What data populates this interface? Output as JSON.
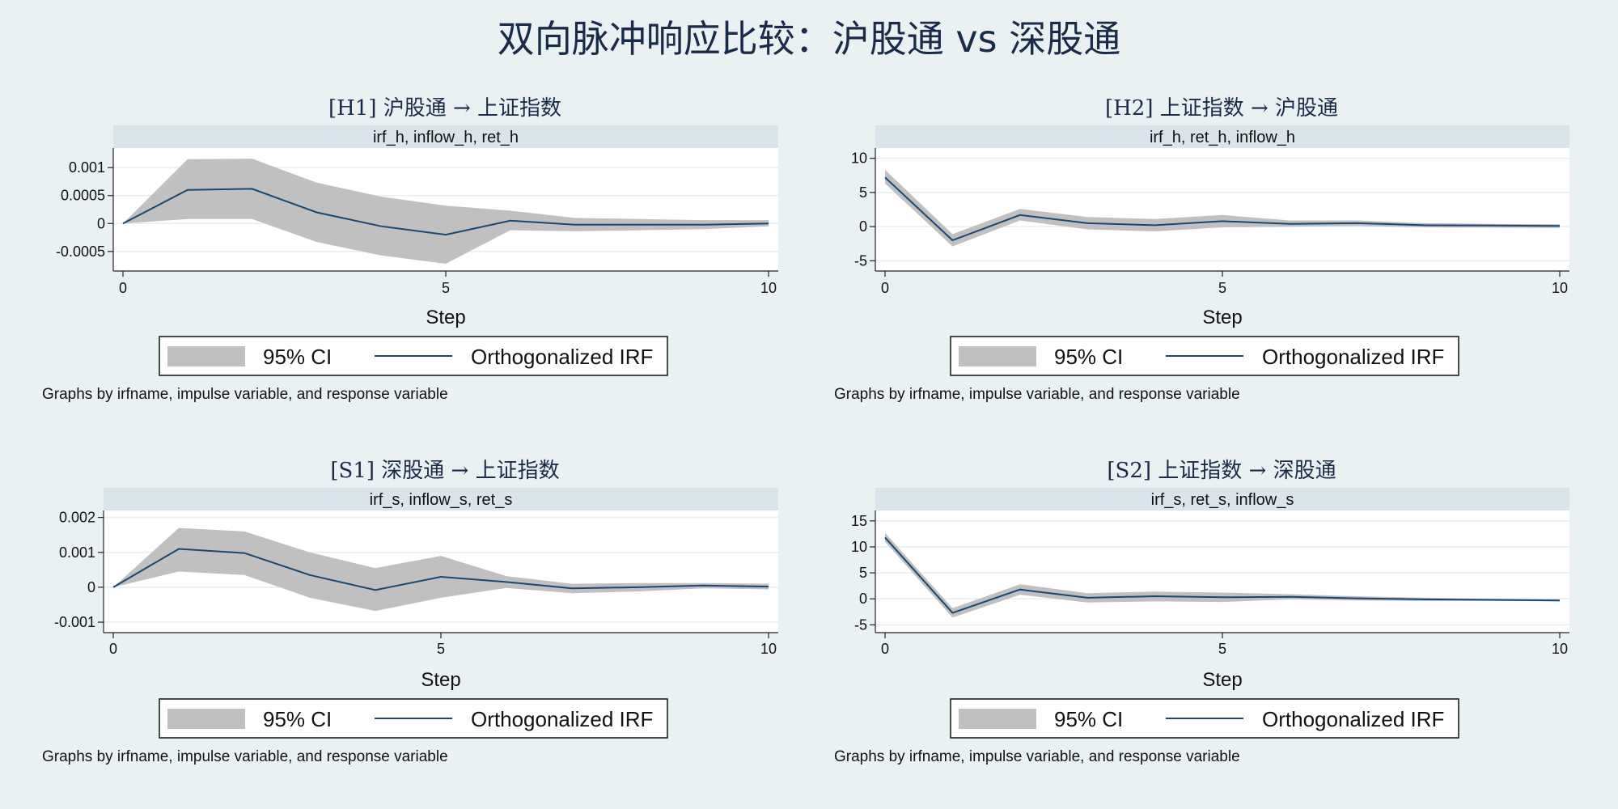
{
  "page": {
    "title": "双向脉冲响应比较：沪股通 vs 深股通"
  },
  "colors": {
    "background": "#eaf1f3",
    "plot_background": "#ffffff",
    "strip": "#d9e5ea",
    "ci_band": "#c0c0c0",
    "irf_line": "#1a476f",
    "grid": "#e6eef1"
  },
  "chart_data": [
    {
      "type": "line",
      "title": "[H1] 沪股通 → 上证指数",
      "strip_label": "irf_h, inflow_h, ret_h",
      "xlabel": "Step",
      "ylabel": "",
      "xlim": [
        0,
        10
      ],
      "ylim": [
        -0.00085,
        0.00135
      ],
      "xticks": [
        0,
        5,
        10
      ],
      "xtick_labels": [
        "0",
        "5",
        "10"
      ],
      "yticks": [
        -0.0005,
        0,
        0.0005,
        0.001
      ],
      "ytick_labels": [
        "-0.0005",
        "0",
        "0.0005",
        "0.001"
      ],
      "x": [
        0,
        1,
        2,
        3,
        4,
        5,
        6,
        7,
        8,
        9,
        10
      ],
      "series": [
        {
          "name": "Orthogonalized IRF",
          "values": [
            0,
            0.0006,
            0.00062,
            0.0002,
            -5e-05,
            -0.0002,
            5e-05,
            -2e-05,
            -2e-05,
            -2e-05,
            0.0
          ]
        },
        {
          "name": "95% CI",
          "lower": [
            0,
            8e-05,
            8e-05,
            -0.00033,
            -0.00057,
            -0.00072,
            -0.00012,
            -0.00014,
            -0.00012,
            -0.0001,
            -5e-05
          ],
          "upper": [
            0,
            0.00115,
            0.00116,
            0.00073,
            0.00048,
            0.00032,
            0.00023,
            0.0001,
            8e-05,
            6e-05,
            6e-05
          ]
        }
      ],
      "legend": [
        "95% CI",
        "Orthogonalized IRF"
      ],
      "note": "Graphs by irfname, impulse variable, and response variable",
      "grid": true,
      "legend_position": "bottom"
    },
    {
      "type": "line",
      "title": "[H2] 上证指数 → 沪股通",
      "strip_label": "irf_h, ret_h, inflow_h",
      "xlabel": "Step",
      "ylabel": "",
      "xlim": [
        0,
        10
      ],
      "ylim": [
        -6.5,
        11.5
      ],
      "xticks": [
        0,
        5,
        10
      ],
      "xtick_labels": [
        "0",
        "5",
        "10"
      ],
      "yticks": [
        -5,
        0,
        5,
        10
      ],
      "ytick_labels": [
        "-5",
        "0",
        "5",
        "10"
      ],
      "x": [
        0,
        1,
        2,
        3,
        4,
        5,
        6,
        7,
        8,
        9,
        10
      ],
      "series": [
        {
          "name": "Orthogonalized IRF",
          "values": [
            7.2,
            -2.0,
            1.7,
            0.5,
            0.2,
            0.8,
            0.4,
            0.5,
            0.2,
            0.15,
            0.1
          ]
        },
        {
          "name": "95% CI",
          "lower": [
            6.3,
            -2.9,
            0.9,
            -0.4,
            -0.7,
            -0.1,
            0.0,
            0.1,
            -0.1,
            -0.15,
            -0.2
          ],
          "upper": [
            8.3,
            -1.1,
            2.6,
            1.4,
            1.1,
            1.7,
            0.9,
            0.9,
            0.5,
            0.4,
            0.35
          ]
        }
      ],
      "legend": [
        "95% CI",
        "Orthogonalized IRF"
      ],
      "note": "Graphs by irfname, impulse variable, and response variable",
      "grid": true,
      "legend_position": "bottom"
    },
    {
      "type": "line",
      "title": "[S1] 深股通 → 上证指数",
      "strip_label": "irf_s, inflow_s, ret_s",
      "xlabel": "Step",
      "ylabel": "",
      "xlim": [
        0,
        10
      ],
      "ylim": [
        -0.0013,
        0.0022
      ],
      "xticks": [
        0,
        5,
        10
      ],
      "xtick_labels": [
        "0",
        "5",
        "10"
      ],
      "yticks": [
        -0.001,
        0,
        0.001,
        0.002
      ],
      "ytick_labels": [
        "-0.001",
        "0",
        "0.001",
        "0.002"
      ],
      "x": [
        0,
        1,
        2,
        3,
        4,
        5,
        6,
        7,
        8,
        9,
        10
      ],
      "series": [
        {
          "name": "Orthogonalized IRF",
          "values": [
            0,
            0.0011,
            0.00098,
            0.00035,
            -8e-05,
            0.0003,
            0.00015,
            -3e-05,
            0.0,
            5e-05,
            2e-05
          ]
        },
        {
          "name": "95% CI",
          "lower": [
            0,
            0.00045,
            0.00035,
            -0.0003,
            -0.00068,
            -0.0003,
            -2e-05,
            -0.00017,
            -0.00012,
            -3e-05,
            -6e-05
          ],
          "upper": [
            0,
            0.0017,
            0.0016,
            0.001,
            0.00055,
            0.0009,
            0.00032,
            0.0001,
            0.00012,
            0.00012,
            0.0001
          ]
        }
      ],
      "legend": [
        "95% CI",
        "Orthogonalized IRF"
      ],
      "note": "Graphs by irfname, impulse variable, and response variable",
      "grid": true,
      "legend_position": "bottom"
    },
    {
      "type": "line",
      "title": "[S2] 上证指数 → 深股通",
      "strip_label": "irf_s, ret_s, inflow_s",
      "xlabel": "Step",
      "ylabel": "",
      "xlim": [
        0,
        10
      ],
      "ylim": [
        -6.5,
        17
      ],
      "xticks": [
        0,
        5,
        10
      ],
      "xtick_labels": [
        "0",
        "5",
        "10"
      ],
      "yticks": [
        -5,
        0,
        5,
        10,
        15
      ],
      "ytick_labels": [
        "-5",
        "0",
        "5",
        "10",
        "15"
      ],
      "x": [
        0,
        1,
        2,
        3,
        4,
        5,
        6,
        7,
        8,
        9,
        10
      ],
      "series": [
        {
          "name": "Orthogonalized IRF",
          "values": [
            11.8,
            -2.7,
            1.8,
            0.2,
            0.5,
            0.3,
            0.4,
            0.1,
            -0.1,
            -0.2,
            -0.3
          ]
        },
        {
          "name": "95% CI",
          "lower": [
            11.0,
            -3.6,
            0.8,
            -0.7,
            -0.5,
            -0.6,
            -0.1,
            -0.3,
            -0.4,
            -0.4,
            -0.5
          ],
          "upper": [
            12.7,
            -1.8,
            2.8,
            1.1,
            1.4,
            1.2,
            0.9,
            0.5,
            0.2,
            0.0,
            -0.1
          ]
        }
      ],
      "legend": [
        "95% CI",
        "Orthogonalized IRF"
      ],
      "note": "Graphs by irfname, impulse variable, and response variable",
      "grid": true,
      "legend_position": "bottom"
    }
  ]
}
